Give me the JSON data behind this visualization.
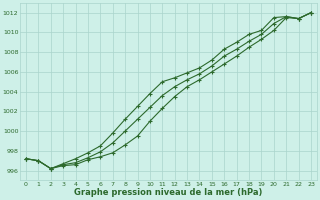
{
  "x": [
    0,
    1,
    2,
    3,
    4,
    5,
    6,
    7,
    8,
    9,
    10,
    11,
    12,
    13,
    14,
    15,
    16,
    17,
    18,
    19,
    20,
    21,
    22,
    23
  ],
  "line1": [
    997.2,
    997.0,
    996.2,
    996.5,
    996.6,
    997.1,
    997.4,
    997.8,
    998.6,
    999.5,
    1001.0,
    1002.3,
    1003.5,
    1004.5,
    1005.2,
    1006.0,
    1006.8,
    1007.6,
    1008.5,
    1009.3,
    1010.2,
    1011.5,
    1011.4,
    1012.0
  ],
  "line2": [
    997.2,
    997.0,
    996.2,
    996.7,
    997.2,
    997.8,
    998.5,
    999.8,
    1001.2,
    1002.5,
    1003.8,
    1005.0,
    1005.4,
    1005.9,
    1006.4,
    1007.2,
    1008.3,
    1009.0,
    1009.8,
    1010.2,
    1011.5,
    1011.6,
    1011.4,
    1012.0
  ],
  "line3": [
    997.2,
    997.0,
    996.2,
    996.6,
    996.8,
    997.3,
    997.9,
    998.8,
    1000.0,
    1001.2,
    1002.4,
    1003.6,
    1004.5,
    1005.2,
    1005.8,
    1006.6,
    1007.6,
    1008.3,
    1009.1,
    1009.8,
    1010.9,
    1011.6,
    1011.4,
    1012.0
  ],
  "line_color": "#2d6a2d",
  "bg_color": "#cef0e8",
  "grid_color": "#aad4cc",
  "xlabel": "Graphe pression niveau de la mer (hPa)",
  "ylim": [
    995.0,
    1013.0
  ],
  "yticks": [
    996,
    998,
    1000,
    1002,
    1004,
    1006,
    1008,
    1010,
    1012
  ],
  "xticks": [
    0,
    1,
    2,
    3,
    4,
    5,
    6,
    7,
    8,
    9,
    10,
    11,
    12,
    13,
    14,
    15,
    16,
    17,
    18,
    19,
    20,
    21,
    22,
    23
  ],
  "marker": "+",
  "markersize": 3.5,
  "linewidth": 0.8
}
